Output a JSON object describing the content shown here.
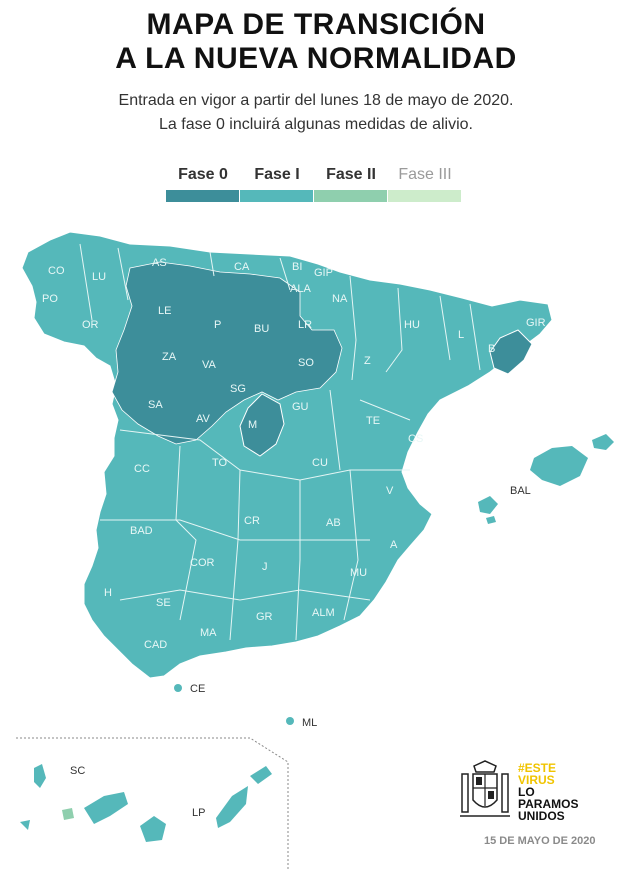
{
  "title_line1": "MAPA DE TRANSICIÓN",
  "title_line2": "A LA NUEVA NORMALIDAD",
  "subtitle_line1": "Entrada en vigor a partir del lunes 18 de mayo de 2020.",
  "subtitle_line2": "La fase 0 incluirá algunas medidas de alivio.",
  "legend": [
    {
      "label": "Fase 0",
      "color": "#3d8e9a"
    },
    {
      "label": "Fase I",
      "color": "#55b8ba"
    },
    {
      "label": "Fase II",
      "color": "#8fcfae"
    },
    {
      "label": "Fase III",
      "color": "#cdeccb"
    }
  ],
  "regions": {
    "CO": "CO",
    "LU": "LU",
    "AS": "AS",
    "CA": "CA",
    "BI": "BI",
    "GIP": "GIP",
    "PO": "PO",
    "OR": "OR",
    "LE": "LE",
    "P": "P",
    "BU": "BU",
    "ALA": "ALA",
    "NA": "NA",
    "LR": "LR",
    "HU": "HU",
    "L": "L",
    "GIR": "GIR",
    "B": "B",
    "ZA": "ZA",
    "VA": "VA",
    "SO": "SO",
    "Z": "Z",
    "SA": "SA",
    "SG": "SG",
    "AV": "AV",
    "M": "M",
    "GU": "GU",
    "TE": "TE",
    "CS": "CS",
    "CC": "CC",
    "TO": "TO",
    "CU": "CU",
    "V": "V",
    "BAL": "BAL",
    "BAD": "BAD",
    "CR": "CR",
    "AB": "AB",
    "A": "A",
    "COR": "COR",
    "J": "J",
    "MU": "MU",
    "H": "H",
    "SE": "SE",
    "GR": "GR",
    "ALM": "ALM",
    "MA": "MA",
    "CAD": "CAD",
    "CE": "CE",
    "ML": "ML",
    "SC": "SC",
    "LP": "LP"
  },
  "logo": {
    "tag_line1": "#ESTE",
    "tag_line2": "VIRUS",
    "main_line1": "LO",
    "main_line2": "PARAMOS",
    "main_line3": "UNIDOS"
  },
  "date": "15 DE MAYO DE 2020"
}
